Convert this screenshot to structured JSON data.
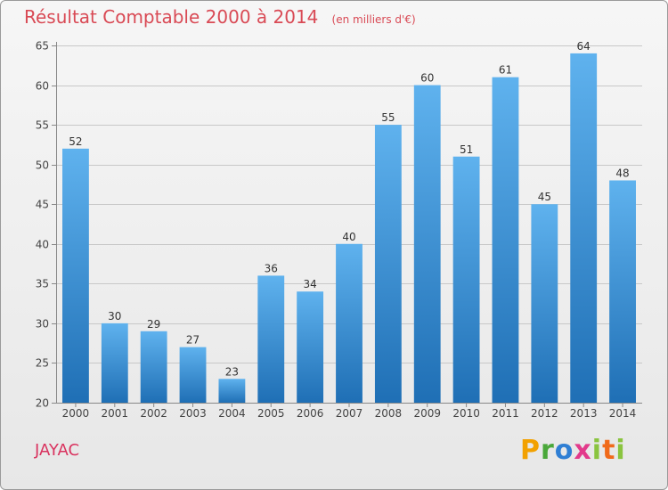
{
  "header": {
    "title": "Résultat Comptable 2000 à 2014",
    "subtitle": "(en milliers d'€)"
  },
  "footer": {
    "commune": "JAYAC",
    "logo_text": "Proxiti"
  },
  "colors": {
    "title": "#d94a55",
    "bar_top": "#5fb2ee",
    "bar_bottom": "#1f6fb5",
    "grid": "#c8c8c8"
  },
  "chart_data": {
    "type": "bar",
    "title": "Résultat Comptable 2000 à 2014",
    "subtitle": "(en milliers d'€)",
    "xlabel": "",
    "ylabel": "",
    "categories": [
      "2000",
      "2001",
      "2002",
      "2003",
      "2004",
      "2005",
      "2006",
      "2007",
      "2008",
      "2009",
      "2010",
      "2011",
      "2012",
      "2013",
      "2014"
    ],
    "values": [
      52,
      30,
      29,
      27,
      23,
      36,
      34,
      40,
      55,
      60,
      51,
      61,
      45,
      64,
      48
    ],
    "ylim": [
      20,
      65
    ],
    "yticks": [
      20,
      25,
      30,
      35,
      40,
      45,
      50,
      55,
      60,
      65
    ],
    "grid": true
  }
}
